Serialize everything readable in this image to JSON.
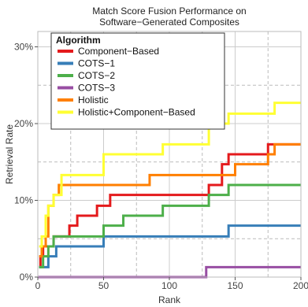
{
  "chart_data": {
    "type": "line",
    "title": "Match Score Fusion Performance on\nSoftware−Generated Composites",
    "xlabel": "Rank",
    "ylabel": "Retrieval Rate",
    "xlim": [
      0,
      200
    ],
    "ylim": [
      0,
      0.32
    ],
    "x_ticks": [
      0,
      50,
      100,
      150,
      200
    ],
    "y_ticks": [
      0,
      0.1,
      0.2,
      0.3
    ],
    "y_tick_labels": [
      "0%",
      "10%",
      "20%",
      "30%"
    ],
    "grid": true,
    "legend": {
      "title": "Algorithm",
      "position": "top-left"
    },
    "step": true,
    "series": [
      {
        "name": "Component−Based",
        "color": "#e41a1c",
        "x": [
          1,
          2,
          4,
          8,
          12,
          16,
          20,
          24,
          30,
          38,
          45,
          50,
          55,
          95,
          110,
          130,
          140,
          145,
          160,
          175,
          180,
          200
        ],
        "y": [
          0.013,
          0.027,
          0.04,
          0.04,
          0.053,
          0.053,
          0.053,
          0.067,
          0.08,
          0.08,
          0.093,
          0.093,
          0.107,
          0.107,
          0.107,
          0.12,
          0.147,
          0.16,
          0.16,
          0.173,
          0.173,
          0.173
        ]
      },
      {
        "name": "COTS−1",
        "color": "#377eb8",
        "x": [
          1,
          2,
          4,
          8,
          14,
          20,
          50,
          130,
          145,
          200
        ],
        "y": [
          0.013,
          0.013,
          0.013,
          0.027,
          0.04,
          0.04,
          0.053,
          0.053,
          0.067,
          0.067
        ],
        "y_steps_note": ""
      },
      {
        "name": "COTS−2",
        "color": "#4daf4a",
        "x": [
          1,
          4,
          8,
          12,
          20,
          45,
          50,
          65,
          95,
          130,
          145,
          200
        ],
        "y": [
          0.013,
          0.027,
          0.04,
          0.053,
          0.053,
          0.053,
          0.067,
          0.08,
          0.093,
          0.107,
          0.12,
          0.12
        ]
      },
      {
        "name": "COTS−3",
        "color": "#984ea3",
        "x": [
          0,
          128,
          200
        ],
        "y": [
          0.0,
          0.013,
          0.013
        ]
      },
      {
        "name": "Holistic",
        "color": "#ff7f00",
        "x": [
          1,
          3,
          6,
          8,
          12,
          16,
          20,
          50,
          85,
          130,
          140,
          150,
          175,
          180,
          200
        ],
        "y": [
          0.027,
          0.04,
          0.053,
          0.093,
          0.107,
          0.12,
          0.12,
          0.12,
          0.133,
          0.133,
          0.133,
          0.147,
          0.16,
          0.173,
          0.173
        ]
      },
      {
        "name": "Holistic+Component−Based",
        "color": "#ffff33",
        "x": [
          1,
          3,
          6,
          8,
          12,
          18,
          30,
          50,
          68,
          95,
          130,
          145,
          180,
          200
        ],
        "y": [
          0.04,
          0.053,
          0.08,
          0.093,
          0.107,
          0.133,
          0.133,
          0.16,
          0.16,
          0.173,
          0.2,
          0.213,
          0.227,
          0.227
        ]
      }
    ]
  }
}
